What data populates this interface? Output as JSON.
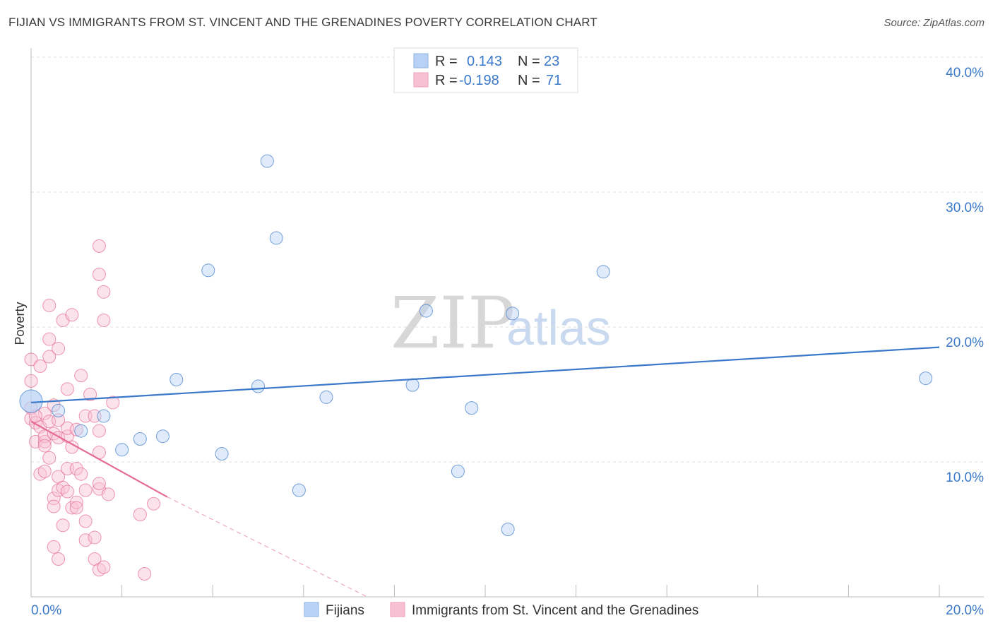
{
  "title": "FIJIAN VS IMMIGRANTS FROM ST. VINCENT AND THE GRENADINES POVERTY CORRELATION CHART",
  "source": "Source: ZipAtlas.com",
  "watermark": {
    "zip": "ZIP",
    "atlas": "atlas"
  },
  "colors": {
    "blue": "#3a78c9",
    "blue_fill": "#b8d2f5",
    "pink": "#e56a94",
    "pink_fill": "#f8c1d3"
  },
  "legend": {
    "r_label": "R =",
    "n_label": "N =",
    "fijians": {
      "r": "0.143",
      "n": "23"
    },
    "immigrants": {
      "r": "-0.198",
      "n": "71"
    }
  },
  "chart_data": {
    "type": "scatter",
    "title": "FIJIAN VS IMMIGRANTS FROM ST. VINCENT AND THE GRENADINES POVERTY CORRELATION CHART",
    "xlabel": "",
    "ylabel": "Poverty",
    "xlim": [
      0,
      20
    ],
    "ylim": [
      0,
      41
    ],
    "x_tick_labels": {
      "min": "0.0%",
      "max": "20.0%"
    },
    "y_ticks": [
      {
        "value": 10,
        "label": "10.0%"
      },
      {
        "value": 20,
        "label": "20.0%"
      },
      {
        "value": 30,
        "label": "30.0%"
      },
      {
        "value": 40,
        "label": "40.0%"
      }
    ],
    "series": [
      {
        "name": "Fijians",
        "color": "#3a78c9",
        "points": [
          [
            0.0,
            14.5
          ],
          [
            1.1,
            12.3
          ],
          [
            1.6,
            13.4
          ],
          [
            2.0,
            10.9
          ],
          [
            2.4,
            11.7
          ],
          [
            2.9,
            11.9
          ],
          [
            3.2,
            16.1
          ],
          [
            3.9,
            24.2
          ],
          [
            4.2,
            10.6
          ],
          [
            5.0,
            15.6
          ],
          [
            5.2,
            32.3
          ],
          [
            5.4,
            26.6
          ],
          [
            5.9,
            7.9
          ],
          [
            6.5,
            14.8
          ],
          [
            8.4,
            15.7
          ],
          [
            8.7,
            21.2
          ],
          [
            9.4,
            9.3
          ],
          [
            9.7,
            14.0
          ],
          [
            10.5,
            5.0
          ],
          [
            10.6,
            21.0
          ],
          [
            12.6,
            24.1
          ],
          [
            19.7,
            16.2
          ],
          [
            0.6,
            13.8
          ]
        ],
        "trend": {
          "x": [
            0,
            20
          ],
          "y": [
            14.4,
            18.5
          ],
          "dashed": false
        }
      },
      {
        "name": "Immigrants from St. Vincent and the Grenadines",
        "color": "#e56a94",
        "points": [
          [
            0.0,
            17.6
          ],
          [
            0.0,
            16.0
          ],
          [
            0.0,
            14.0
          ],
          [
            0.0,
            13.2
          ],
          [
            0.1,
            12.9
          ],
          [
            0.1,
            11.5
          ],
          [
            0.2,
            17.1
          ],
          [
            0.2,
            9.1
          ],
          [
            0.2,
            12.6
          ],
          [
            0.3,
            13.6
          ],
          [
            0.3,
            11.5
          ],
          [
            0.3,
            9.3
          ],
          [
            0.3,
            11.9
          ],
          [
            0.3,
            11.2
          ],
          [
            0.4,
            17.8
          ],
          [
            0.4,
            10.3
          ],
          [
            0.4,
            13.0
          ],
          [
            0.4,
            21.6
          ],
          [
            0.4,
            19.1
          ],
          [
            0.5,
            14.2
          ],
          [
            0.5,
            7.3
          ],
          [
            0.5,
            6.7
          ],
          [
            0.5,
            3.7
          ],
          [
            0.5,
            12.1
          ],
          [
            0.6,
            18.4
          ],
          [
            0.6,
            8.9
          ],
          [
            0.6,
            11.8
          ],
          [
            0.6,
            2.8
          ],
          [
            0.6,
            7.9
          ],
          [
            0.7,
            5.3
          ],
          [
            0.7,
            8.1
          ],
          [
            0.7,
            20.5
          ],
          [
            0.8,
            15.4
          ],
          [
            0.8,
            9.5
          ],
          [
            0.8,
            7.8
          ],
          [
            0.8,
            11.9
          ],
          [
            0.8,
            12.5
          ],
          [
            0.9,
            6.6
          ],
          [
            0.9,
            11.1
          ],
          [
            0.6,
            13.1
          ],
          [
            0.9,
            20.9
          ],
          [
            1.0,
            12.4
          ],
          [
            1.0,
            7.0
          ],
          [
            1.0,
            9.5
          ],
          [
            1.0,
            6.6
          ],
          [
            1.1,
            16.4
          ],
          [
            1.1,
            9.1
          ],
          [
            1.2,
            4.2
          ],
          [
            1.2,
            7.9
          ],
          [
            1.2,
            5.6
          ],
          [
            1.2,
            13.4
          ],
          [
            1.3,
            15.0
          ],
          [
            1.4,
            4.4
          ],
          [
            1.4,
            13.4
          ],
          [
            1.5,
            8.0
          ],
          [
            1.5,
            12.3
          ],
          [
            1.5,
            10.7
          ],
          [
            1.5,
            8.4
          ],
          [
            1.4,
            2.8
          ],
          [
            1.5,
            26.0
          ],
          [
            1.5,
            2.0
          ],
          [
            1.6,
            2.2
          ],
          [
            1.5,
            23.9
          ],
          [
            1.6,
            22.6
          ],
          [
            1.6,
            20.5
          ],
          [
            1.7,
            7.6
          ],
          [
            1.8,
            14.4
          ],
          [
            2.4,
            6.1
          ],
          [
            2.5,
            1.7
          ],
          [
            2.7,
            6.9
          ],
          [
            0.1,
            13.4
          ]
        ],
        "trend": {
          "x": [
            0,
            3
          ],
          "y": [
            13.0,
            7.4
          ],
          "dashed": false,
          "extension": {
            "x": [
              3,
              7.4
            ],
            "y": [
              7.4,
              0
            ]
          }
        }
      }
    ],
    "legend_position": "top-center",
    "grid": true
  }
}
